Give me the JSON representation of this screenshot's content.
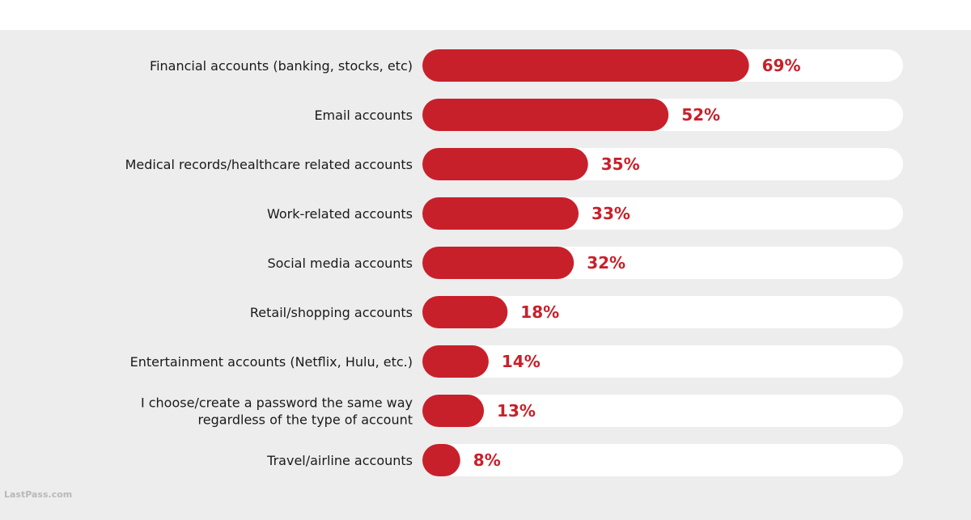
{
  "chart_data": {
    "type": "bar",
    "orientation": "horizontal",
    "title": "",
    "xlabel": "",
    "ylabel": "",
    "xlim": [
      0,
      100
    ],
    "grid": false,
    "categories": [
      [
        "Financial accounts (banking, stocks, etc)"
      ],
      [
        "Email accounts"
      ],
      [
        "Medical records/healthcare related accounts"
      ],
      [
        "Work-related accounts"
      ],
      [
        "Social media accounts"
      ],
      [
        "Retail/shopping accounts"
      ],
      [
        "Entertainment accounts (Netflix, Hulu, etc.)"
      ],
      [
        "I choose/create a password the same way",
        "regardless of the type of account"
      ],
      [
        "Travel/airline accounts"
      ]
    ],
    "values": [
      69,
      52,
      35,
      33,
      32,
      18,
      14,
      13,
      8
    ],
    "value_labels": [
      "69%",
      "52%",
      "35%",
      "33%",
      "32%",
      "18%",
      "14%",
      "13%",
      "8%"
    ]
  },
  "footer": {
    "source_text": "LastPass.com"
  },
  "colors": {
    "page_background": "#ededed",
    "track": "#ffffff",
    "bar": "#c8202a",
    "value_text": "#c8202a",
    "label_text": "#1a1a1a",
    "watermark": "#b9b9b9"
  }
}
